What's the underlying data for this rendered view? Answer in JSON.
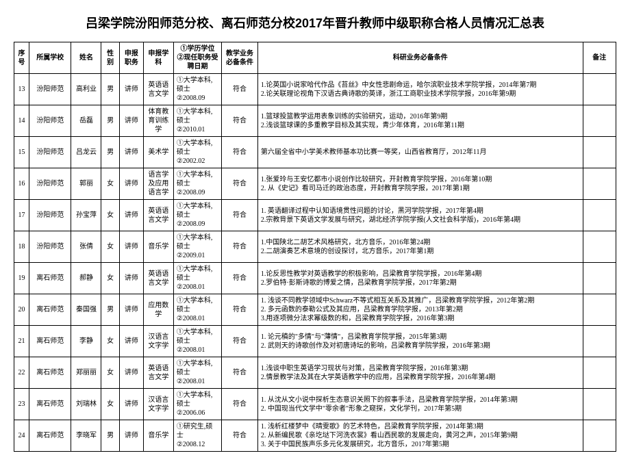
{
  "title": "吕梁学院汾阳师范分校、离石师范分校2017年晋升教师中级职称合格人员情况汇总表",
  "headers": {
    "seq": "序号",
    "school": "所属学校",
    "name": "姓名",
    "gender": "性别",
    "pos": "申报职务",
    "subject": "申报学科",
    "edu": "①学历学位\n②现任职务受聘日期",
    "teach": "教学业务必备条件",
    "research": "科研业务必备条件",
    "remark": "备注"
  },
  "rows": [
    {
      "seq": "13",
      "school": "汾阳师范",
      "name": "高利业",
      "gender": "男",
      "pos": "讲师",
      "subject": "英语语言文学",
      "edu": "①大学本科,\n硕士\n②2008.09",
      "teach": "符合",
      "research": "1.论英国小说家哈代作品《苔丝》中女性悲剧命运，哈尔滨职业技术学院学报，2014年第7期\n2.论关联理论视角下汉语古典诗歌的英译，浙江工商职业技术学院学报，2016年第9期",
      "remark": ""
    },
    {
      "seq": "14",
      "school": "汾阳师范",
      "name": "岳磊",
      "gender": "男",
      "pos": "讲师",
      "subject": "体育教育训练学",
      "edu": "①大学本科,\n硕士\n②2010.01",
      "teach": "符合",
      "research": "1.篮球投篮教学运用表象训练的实验研究，运动，2016年第9期\n2.浅谈篮球课的多重教学目标及其实现，青少年体育，2016年第11期",
      "remark": ""
    },
    {
      "seq": "15",
      "school": "汾阳师范",
      "name": "吕龙云",
      "gender": "男",
      "pos": "讲师",
      "subject": "美术学",
      "edu": "①大学本科,\n硕士\n②2002.02",
      "teach": "符合",
      "research": "第六届全省中小学美术教师基本功比赛一等奖，山西省教育厅，2012年11月",
      "remark": ""
    },
    {
      "seq": "16",
      "school": "汾阳师范",
      "name": "郭丽",
      "gender": "女",
      "pos": "讲师",
      "subject": "语言学及应用语言学",
      "edu": "①大学本科,\n硕士\n②2008.09",
      "teach": "符合",
      "research": "1.张爱玲与王安忆都市小说创作比较研究，开封教育学院学报，2016年第10期\n2. 从《史记》看司马迁的政治态度，开封教育学院学报，2017年第1期",
      "remark": ""
    },
    {
      "seq": "17",
      "school": "汾阳师范",
      "name": "孙宝萍",
      "gender": "女",
      "pos": "讲师",
      "subject": "英语语言文学",
      "edu": "①大学本科,\n硕士\n②2008.09",
      "teach": "符合",
      "research": "1. 英语翻译过程中认知语境贯性问题的讨论，黑河学院学报，2017年第4期\n2.宗教背景下英语文学发展与研究，湖北经济学院学报(人文社会科学版)，2016年第4期",
      "remark": ""
    },
    {
      "seq": "18",
      "school": "汾阳师范",
      "name": "张倩",
      "gender": "女",
      "pos": "讲师",
      "subject": "音乐学",
      "edu": "①大学本科,\n硕士\n②2009.01",
      "teach": "符合",
      "research": "1.中国陕北二胡艺术风格研究，北方音乐，2016年第24期\n2.二胡演奏艺术意境的创设探讨，北方音乐，2017年第1期",
      "remark": ""
    },
    {
      "seq": "19",
      "school": "离石师范",
      "name": "郝静",
      "gender": "女",
      "pos": "讲师",
      "subject": "英语语言文学",
      "edu": "①大学本科,\n硕士\n②2008.01",
      "teach": "符合",
      "research": "1.论反思性教学对英语教学的积极影响，吕梁教育学院学报，2016年第4期\n2.罗伯特·彭斯诗歌的博爱之情，吕梁教育学院学报，2017年第2期",
      "remark": ""
    },
    {
      "seq": "20",
      "school": "离石师范",
      "name": "秦国强",
      "gender": "男",
      "pos": "讲师",
      "subject": "应用数学",
      "edu": "①大学本科,\n硕士\n②2008.01",
      "teach": "符合",
      "research": "1. 浅谈不同教学领域中Schwarz不等式相互关系及其推广，吕梁教育学院学报，2012年第2期\n2. 多元函数的泰勒公式及其应用，吕梁教育学院学报，2013年第2期\n3.用逐项微分法求幂级数的和，吕梁教育学院学报，2016年第3期",
      "remark": ""
    },
    {
      "seq": "21",
      "school": "离石师范",
      "name": "李静",
      "gender": "女",
      "pos": "讲师",
      "subject": "汉语言文字学",
      "edu": "①大学本科,\n硕士\n②2008.01",
      "teach": "符合",
      "research": "1. 论元稹的\"多情\"与\"薄情\"，吕梁教育学院学报，2015年第3期\n2. 武则天的诗歌创作及对初唐诗坛的影响，吕梁教育学院学报，2016年第3期",
      "remark": ""
    },
    {
      "seq": "22",
      "school": "离石师范",
      "name": "郑丽丽",
      "gender": "女",
      "pos": "讲师",
      "subject": "英语语言文学",
      "edu": "①大学本科,\n硕士\n②2008.01",
      "teach": "符合",
      "research": "1.浅谈中职生英语学习现状与对策，吕梁教育学院学报，2016年第3期\n2.情景教学法及其在大学英语教学中的应用，吕梁教育学院学报，2016年第4期",
      "remark": ""
    },
    {
      "seq": "23",
      "school": "离石师范",
      "name": "刘瑞林",
      "gender": "女",
      "pos": "讲师",
      "subject": "汉语言文字学",
      "edu": "①大学本科,\n硕士\n②2006.06",
      "teach": "符合",
      "research": "1. 从沈从文小说中探析生态意识关照下的叙事手法，吕梁教育学院学报，2014年第3期\n2. 中国现当代文学中\"零余者\"形象之窥探，文化学刊，2017年第5期",
      "remark": ""
    },
    {
      "seq": "24",
      "school": "离石师范",
      "name": "李晓军",
      "gender": "男",
      "pos": "讲师",
      "subject": "音乐学",
      "edu": "①研究生,硕士\n②2008.12",
      "teach": "符合",
      "research": "1. 浅析红楼梦中《晴雯歌》的艺术特色，吕梁教育学院学报，2014年第3期\n2. 从新编民歌《亲圪垯下河洗衣裳》看山西民歌的发展走向，黄河之声，2015年第9期\n3. 关于中国民族声乐多元化发展研究，北方音乐，2017年第5期",
      "remark": ""
    }
  ]
}
